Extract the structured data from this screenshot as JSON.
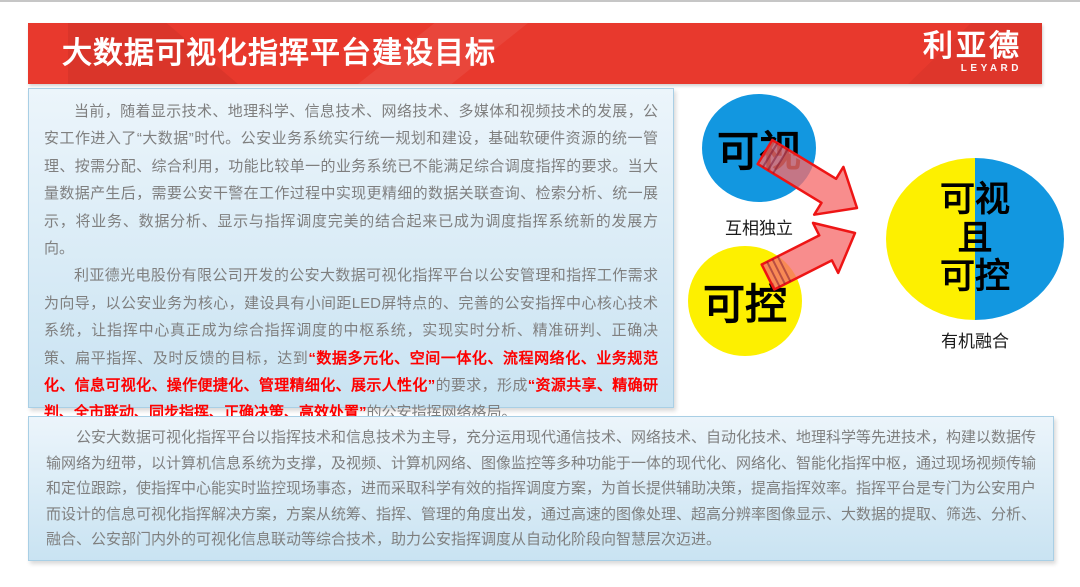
{
  "header": {
    "title": "大数据可视化指挥平台建设目标",
    "logo_cn": "利亚德",
    "logo_en": "LEYARD"
  },
  "colors": {
    "banner": "#e8392d",
    "panel_top": "#ecf5fb",
    "panel_bottom": "#c9e3f2",
    "panel_border": "#a9cfe5",
    "body_text": "#7f7f7f",
    "emphasis_red": "#fe0000",
    "circle_blue": "#1297e0",
    "circle_yellow": "#fdf000",
    "arrow_fill": "#f66d6d",
    "arrow_stroke": "#ee1515"
  },
  "intro": {
    "p1": "当前，随着显示技术、地理科学、信息技术、网络技术、多媒体和视频技术的发展，公安工作进入了“大数据”时代。公安业务系统实行统一规划和建设，基础软硬件资源的统一管理、按需分配、综合利用，功能比较单一的业务系统已不能满足综合调度指挥的要求。当大量数据产生后，需要公安干警在工作过程中实现更精细的数据关联查询、检索分析、统一展示，将业务、数据分析、显示与指挥调度完美的结合起来已成为调度指挥系统新的发展方向。",
    "p2_segments": [
      {
        "text": "利亚德光电股份有限公司开发的公安大数据可视化指挥平台以公安管理和指挥工作需求为向导，以公安业务为核心，建设具有小间距LED屏特点的、完善的公安指挥中心核心技术系统，让指挥中心真正成为综合指挥调度的中枢系统，实现实时分析、精准研判、正确决策、扁平指挥、及时反馈的目标，达到",
        "em": false
      },
      {
        "text": "“数据多元化、空间一体化、流程网络化、业务规范化、信息可视化、操作便捷化、管理精细化、展示人性化”",
        "em": true
      },
      {
        "text": "的要求，形成",
        "em": false
      },
      {
        "text": "“资源共享、精确研判、全市联动、同步指挥、正确决策、高效处置”",
        "em": true
      },
      {
        "text": "的公安指挥网络格局。",
        "em": false
      }
    ]
  },
  "diagram": {
    "visual_label": "可视",
    "control_label": "可控",
    "independent_label": "互相独立",
    "merged_line1": "可视",
    "merged_line2": "且",
    "merged_line3": "可控",
    "fusion_label": "有机融合"
  },
  "summary": {
    "text": "公安大数据可视化指挥平台以指挥技术和信息技术为主导，充分运用现代通信技术、网络技术、自动化技术、地理科学等先进技术，构建以数据传输网络为纽带，以计算机信息系统为支撑，及视频、计算机网络、图像监控等多种功能于一体的现代化、网络化、智能化指挥中枢，通过现场视频传输和定位跟踪，使指挥中心能实时监控现场事态，进而采取科学有效的指挥调度方案，为首长提供辅助决策，提高指挥效率。指挥平台是专门为公安用户而设计的信息可视化指挥解决方案，方案从统筹、指挥、管理的角度出发，通过高速的图像处理、超高分辨率图像显示、大数据的提取、筛选、分析、融合、公安部门内外的可视化信息联动等综合技术，助力公安指挥调度从自动化阶段向智慧层次迈进。"
  }
}
